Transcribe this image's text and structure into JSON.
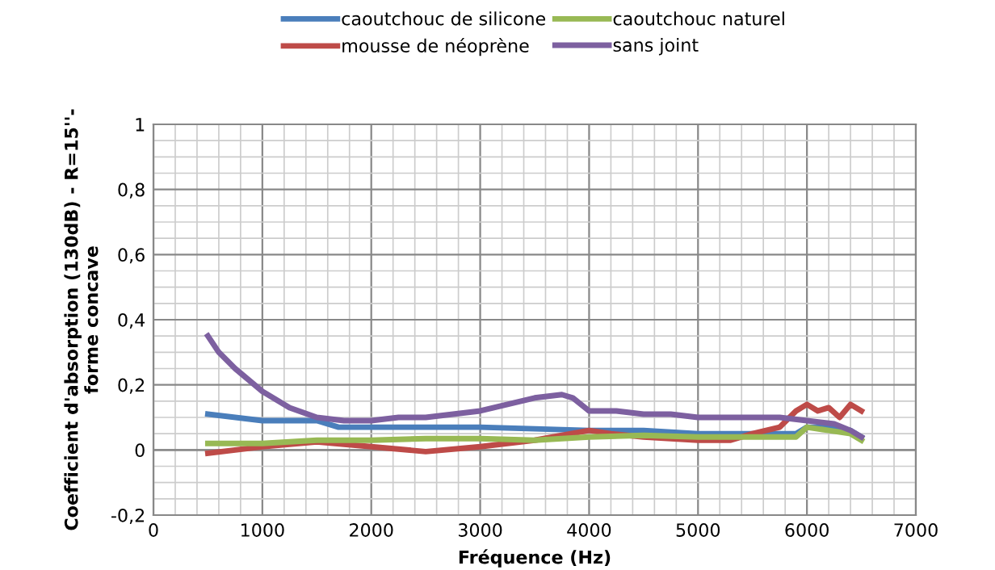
{
  "chart_data": {
    "type": "line",
    "xlabel": "Fréquence (Hz)",
    "ylabel": "Coefficient d'absorption (130dB) - R=15''-\nforme concave",
    "xlim": [
      0,
      7000
    ],
    "xticks": [
      0,
      1000,
      2000,
      3000,
      4000,
      5000,
      6000,
      7000
    ],
    "ylim": [
      -0.2,
      1
    ],
    "yticks": [
      {
        "value": -0.2,
        "label": "-0,2"
      },
      0,
      {
        "value": 0.2,
        "label": "0,2"
      },
      {
        "value": 0.4,
        "label": "0,4"
      },
      {
        "value": 0.6,
        "label": "0,6"
      },
      {
        "value": 0.8,
        "label": "0,8"
      },
      1
    ],
    "grid": true,
    "legend": "top",
    "marker": "none",
    "line_style": "solid",
    "series": [
      {
        "name": "caoutchouc de silicone",
        "color": "#4a7ebb",
        "x": [
          500,
          1000,
          1250,
          1500,
          1700,
          2000,
          2500,
          3000,
          3500,
          4000,
          4500,
          5000,
          5500,
          5900,
          6000,
          6250,
          6400,
          6500
        ],
        "values": [
          0.11,
          0.09,
          0.09,
          0.09,
          0.07,
          0.07,
          0.07,
          0.07,
          0.065,
          0.06,
          0.06,
          0.05,
          0.05,
          0.05,
          0.07,
          0.07,
          0.06,
          0.04
        ]
      },
      {
        "name": "mousse de néoprène",
        "color": "#be4b48",
        "x": [
          500,
          750,
          1000,
          1500,
          2000,
          2500,
          3000,
          3500,
          4000,
          4200,
          4500,
          5000,
          5300,
          5500,
          5750,
          5900,
          6000,
          6100,
          6200,
          6300,
          6400,
          6500
        ],
        "values": [
          -0.01,
          0.0,
          0.01,
          0.025,
          0.01,
          -0.005,
          0.01,
          0.03,
          0.06,
          0.05,
          0.04,
          0.03,
          0.03,
          0.05,
          0.07,
          0.12,
          0.14,
          0.12,
          0.13,
          0.1,
          0.14,
          0.12
        ]
      },
      {
        "name": "caoutchouc naturel",
        "color": "#98b954",
        "x": [
          500,
          1000,
          1500,
          2000,
          2500,
          3000,
          3500,
          4000,
          4500,
          5000,
          5500,
          5900,
          6000,
          6200,
          6400,
          6500
        ],
        "values": [
          0.02,
          0.02,
          0.03,
          0.03,
          0.035,
          0.035,
          0.03,
          0.04,
          0.045,
          0.04,
          0.04,
          0.04,
          0.07,
          0.06,
          0.05,
          0.03
        ]
      },
      {
        "name": "sans joint",
        "color": "#7d60a0",
        "x": [
          500,
          600,
          750,
          1000,
          1250,
          1500,
          1750,
          2000,
          2250,
          2500,
          2750,
          3000,
          3250,
          3500,
          3750,
          3850,
          4000,
          4250,
          4500,
          4750,
          5000,
          5250,
          5500,
          5750,
          6000,
          6250,
          6400,
          6500
        ],
        "values": [
          0.35,
          0.3,
          0.25,
          0.18,
          0.13,
          0.1,
          0.09,
          0.09,
          0.1,
          0.1,
          0.11,
          0.12,
          0.14,
          0.16,
          0.17,
          0.16,
          0.12,
          0.12,
          0.11,
          0.11,
          0.1,
          0.1,
          0.1,
          0.1,
          0.09,
          0.08,
          0.06,
          0.04
        ]
      }
    ]
  }
}
